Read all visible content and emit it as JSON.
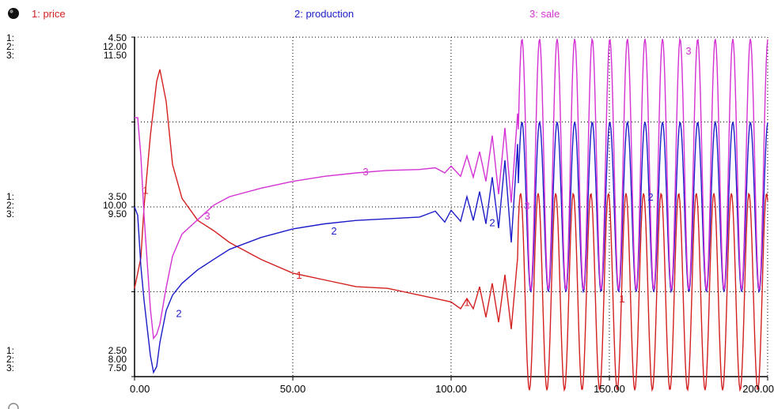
{
  "header": {
    "icon": "pin-icon"
  },
  "legend": [
    {
      "label": "1: price",
      "color": "#d42020"
    },
    {
      "label": "2: production",
      "color": "#1c1cc8"
    },
    {
      "label": "3: sale",
      "color": "#d432d4"
    }
  ],
  "chart_data": {
    "type": "line",
    "x_ticks": [
      "0.00",
      "50.00",
      "100.00",
      "150.00",
      "200.00"
    ],
    "xlim": [
      0,
      200
    ],
    "y_axes": {
      "top": {
        "nums": [
          "1:",
          "2:",
          "3:"
        ],
        "vals": [
          "4.50",
          "12.00",
          "11.50"
        ]
      },
      "middle": {
        "nums": [
          "1:",
          "2:",
          "3:"
        ],
        "vals": [
          "3.50",
          "10.00",
          "9.50"
        ]
      },
      "bottom": {
        "nums": [
          "1:",
          "2:",
          "3:"
        ],
        "vals": [
          "2.50",
          "8.00",
          "7.50"
        ]
      }
    },
    "grid": "dotted",
    "series": [
      {
        "name": "1: price",
        "color": "#d42020",
        "marker": "1",
        "ylim": [
          2.5,
          4.5
        ],
        "points": [
          [
            0,
            3.02
          ],
          [
            2,
            3.2
          ],
          [
            3,
            3.5
          ],
          [
            5,
            3.92
          ],
          [
            7,
            4.24
          ],
          [
            8,
            4.31
          ],
          [
            10,
            4.12
          ],
          [
            12,
            3.75
          ],
          [
            15,
            3.55
          ],
          [
            20,
            3.42
          ],
          [
            25,
            3.36
          ],
          [
            30,
            3.29
          ],
          [
            40,
            3.19
          ],
          [
            50,
            3.11
          ],
          [
            60,
            3.07
          ],
          [
            70,
            3.03
          ],
          [
            80,
            3.02
          ],
          [
            90,
            2.98
          ],
          [
            95,
            2.96
          ],
          [
            100,
            2.94
          ],
          [
            103,
            2.9
          ],
          [
            105,
            2.96
          ],
          [
            107,
            2.9
          ],
          [
            109,
            3.03
          ],
          [
            111,
            2.85
          ],
          [
            113,
            3.05
          ],
          [
            115,
            2.82
          ],
          [
            117,
            3.1
          ],
          [
            119,
            2.78
          ],
          [
            121,
            3.2
          ]
        ],
        "osc": {
          "start": 121,
          "end": 200,
          "period": 5.55,
          "base": 3.0,
          "amp": 0.58,
          "phase": 0.5
        }
      },
      {
        "name": "2: production",
        "color": "#1c1cc8",
        "marker": "2",
        "ylim": [
          8.0,
          12.0
        ],
        "points": [
          [
            0,
            10.0
          ],
          [
            1,
            9.9
          ],
          [
            2,
            9.3
          ],
          [
            3,
            8.9
          ],
          [
            5,
            8.25
          ],
          [
            6,
            8.05
          ],
          [
            7,
            8.12
          ],
          [
            8,
            8.4
          ],
          [
            10,
            8.78
          ],
          [
            12,
            8.96
          ],
          [
            15,
            9.1
          ],
          [
            20,
            9.26
          ],
          [
            25,
            9.38
          ],
          [
            30,
            9.5
          ],
          [
            40,
            9.64
          ],
          [
            50,
            9.74
          ],
          [
            60,
            9.8
          ],
          [
            70,
            9.84
          ],
          [
            80,
            9.86
          ],
          [
            90,
            9.88
          ],
          [
            95,
            9.95
          ],
          [
            98,
            9.82
          ],
          [
            100,
            9.96
          ],
          [
            103,
            9.83
          ],
          [
            105,
            10.12
          ],
          [
            107,
            9.84
          ],
          [
            109,
            10.18
          ],
          [
            111,
            9.8
          ],
          [
            113,
            10.35
          ],
          [
            115,
            9.75
          ],
          [
            117,
            10.55
          ],
          [
            119,
            9.58
          ],
          [
            121,
            10.74
          ]
        ],
        "osc": {
          "start": 121,
          "end": 200,
          "period": 5.55,
          "base": 10.0,
          "amp": 1.0,
          "phase": 0.0
        }
      },
      {
        "name": "3: sale",
        "color": "#d432d4",
        "marker": "3",
        "ylim": [
          7.5,
          11.5
        ],
        "points": [
          [
            0,
            10.55
          ],
          [
            1,
            10.55
          ],
          [
            2,
            10.1
          ],
          [
            3,
            9.4
          ],
          [
            5,
            8.3
          ],
          [
            6,
            7.95
          ],
          [
            7,
            8.0
          ],
          [
            8,
            8.12
          ],
          [
            10,
            8.55
          ],
          [
            12,
            8.92
          ],
          [
            15,
            9.18
          ],
          [
            20,
            9.35
          ],
          [
            25,
            9.52
          ],
          [
            30,
            9.62
          ],
          [
            40,
            9.72
          ],
          [
            50,
            9.8
          ],
          [
            60,
            9.86
          ],
          [
            70,
            9.9
          ],
          [
            80,
            9.93
          ],
          [
            90,
            9.94
          ],
          [
            95,
            9.96
          ],
          [
            98,
            9.9
          ],
          [
            100,
            9.98
          ],
          [
            103,
            9.86
          ],
          [
            105,
            10.1
          ],
          [
            107,
            9.85
          ],
          [
            109,
            10.15
          ],
          [
            111,
            9.8
          ],
          [
            113,
            10.34
          ],
          [
            115,
            9.65
          ],
          [
            117,
            10.43
          ],
          [
            119,
            9.55
          ],
          [
            121,
            10.6
          ]
        ],
        "osc": {
          "start": 121,
          "end": 200,
          "period": 5.55,
          "base": 10.0,
          "amp": 1.48,
          "phase": 0.0
        }
      }
    ],
    "series_labels": [
      {
        "series": 0,
        "text": "1",
        "x": 3.5,
        "y": 3.6
      },
      {
        "series": 0,
        "text": "1",
        "x": 52,
        "y": 3.1
      },
      {
        "series": 0,
        "text": "1",
        "x": 105,
        "y": 2.94
      },
      {
        "series": 0,
        "text": "1",
        "x": 154,
        "y": 2.96
      },
      {
        "series": 1,
        "text": "2",
        "x": 14,
        "y": 8.75
      },
      {
        "series": 1,
        "text": "2",
        "x": 63,
        "y": 9.72
      },
      {
        "series": 1,
        "text": "2",
        "x": 113,
        "y": 9.82
      },
      {
        "series": 1,
        "text": "2",
        "x": 163,
        "y": 10.12
      },
      {
        "series": 2,
        "text": "3",
        "x": 23,
        "y": 9.4
      },
      {
        "series": 2,
        "text": "3",
        "x": 73,
        "y": 9.92
      },
      {
        "series": 2,
        "text": "3",
        "x": 124,
        "y": 9.52
      },
      {
        "series": 2,
        "text": "3",
        "x": 175,
        "y": 11.34
      }
    ]
  }
}
